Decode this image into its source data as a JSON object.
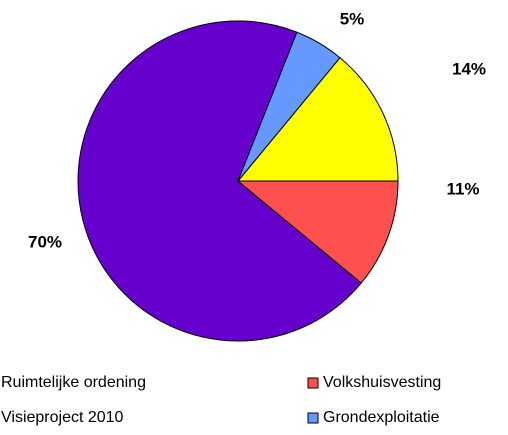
{
  "chart_data": {
    "type": "pie",
    "categories": [
      "Ruimtelijke ordening",
      "Volkshuisvesting",
      "Visieproject 2010",
      "Grondexploitatie"
    ],
    "values": [
      70,
      11,
      14,
      5
    ],
    "value_labels": [
      "70%",
      "11%",
      "14%",
      "5%"
    ],
    "colors": [
      "#6600cc",
      "#ff5050",
      "#ffff00",
      "#6699ff"
    ],
    "legend": "bottom"
  }
}
